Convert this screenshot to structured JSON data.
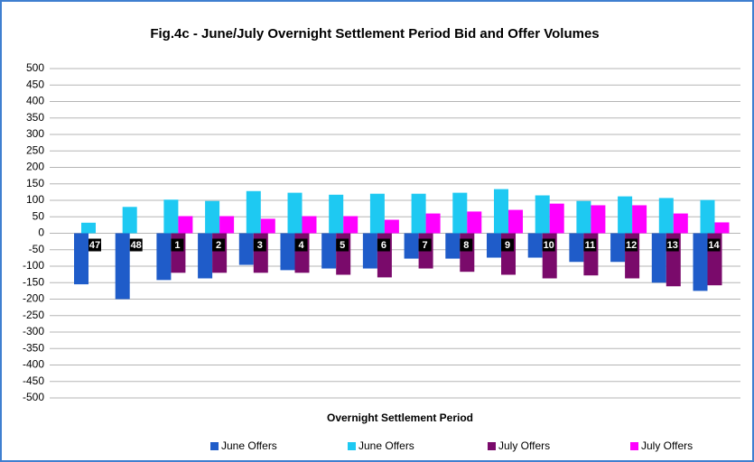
{
  "chart_data": {
    "type": "bar",
    "title": "Fig.4c - June/July Overnight Settlement Period Bid and Offer Volumes",
    "x_label": "Overnight Settlement Period",
    "categories": [
      "47",
      "48",
      "1",
      "2",
      "3",
      "4",
      "5",
      "6",
      "7",
      "8",
      "9",
      "10",
      "11",
      "12",
      "13",
      "14"
    ],
    "series": [
      {
        "name": "June Offers",
        "color": "#1f5cc9",
        "values": [
          -155,
          -200,
          -142,
          -137,
          -96,
          -112,
          -107,
          -107,
          -77,
          -77,
          -74,
          -74,
          -87,
          -87,
          -150,
          -175
        ]
      },
      {
        "name": "June Offers",
        "color": "#1ec9f2",
        "values": [
          32,
          80,
          102,
          98,
          128,
          123,
          117,
          120,
          120,
          123,
          134,
          115,
          98,
          112,
          107,
          101
        ]
      },
      {
        "name": "July Offers",
        "color": "#7a0a6b",
        "values": [
          null,
          null,
          -120,
          -120,
          -120,
          -120,
          -126,
          -134,
          -107,
          -117,
          -126,
          -137,
          -128,
          -137,
          -161,
          -158
        ]
      },
      {
        "name": "July Offers",
        "color": "#ff00ff",
        "values": [
          null,
          null,
          52,
          52,
          44,
          52,
          52,
          41,
          60,
          66,
          71,
          90,
          85,
          85,
          60,
          33
        ]
      }
    ],
    "ylim": [
      -500,
      500
    ],
    "yticks": [
      -500,
      -450,
      -400,
      -350,
      -300,
      -250,
      -200,
      -150,
      -100,
      -50,
      0,
      50,
      100,
      150,
      200,
      250,
      300,
      350,
      400,
      450,
      500
    ],
    "grid": true,
    "legend": "bottom"
  }
}
